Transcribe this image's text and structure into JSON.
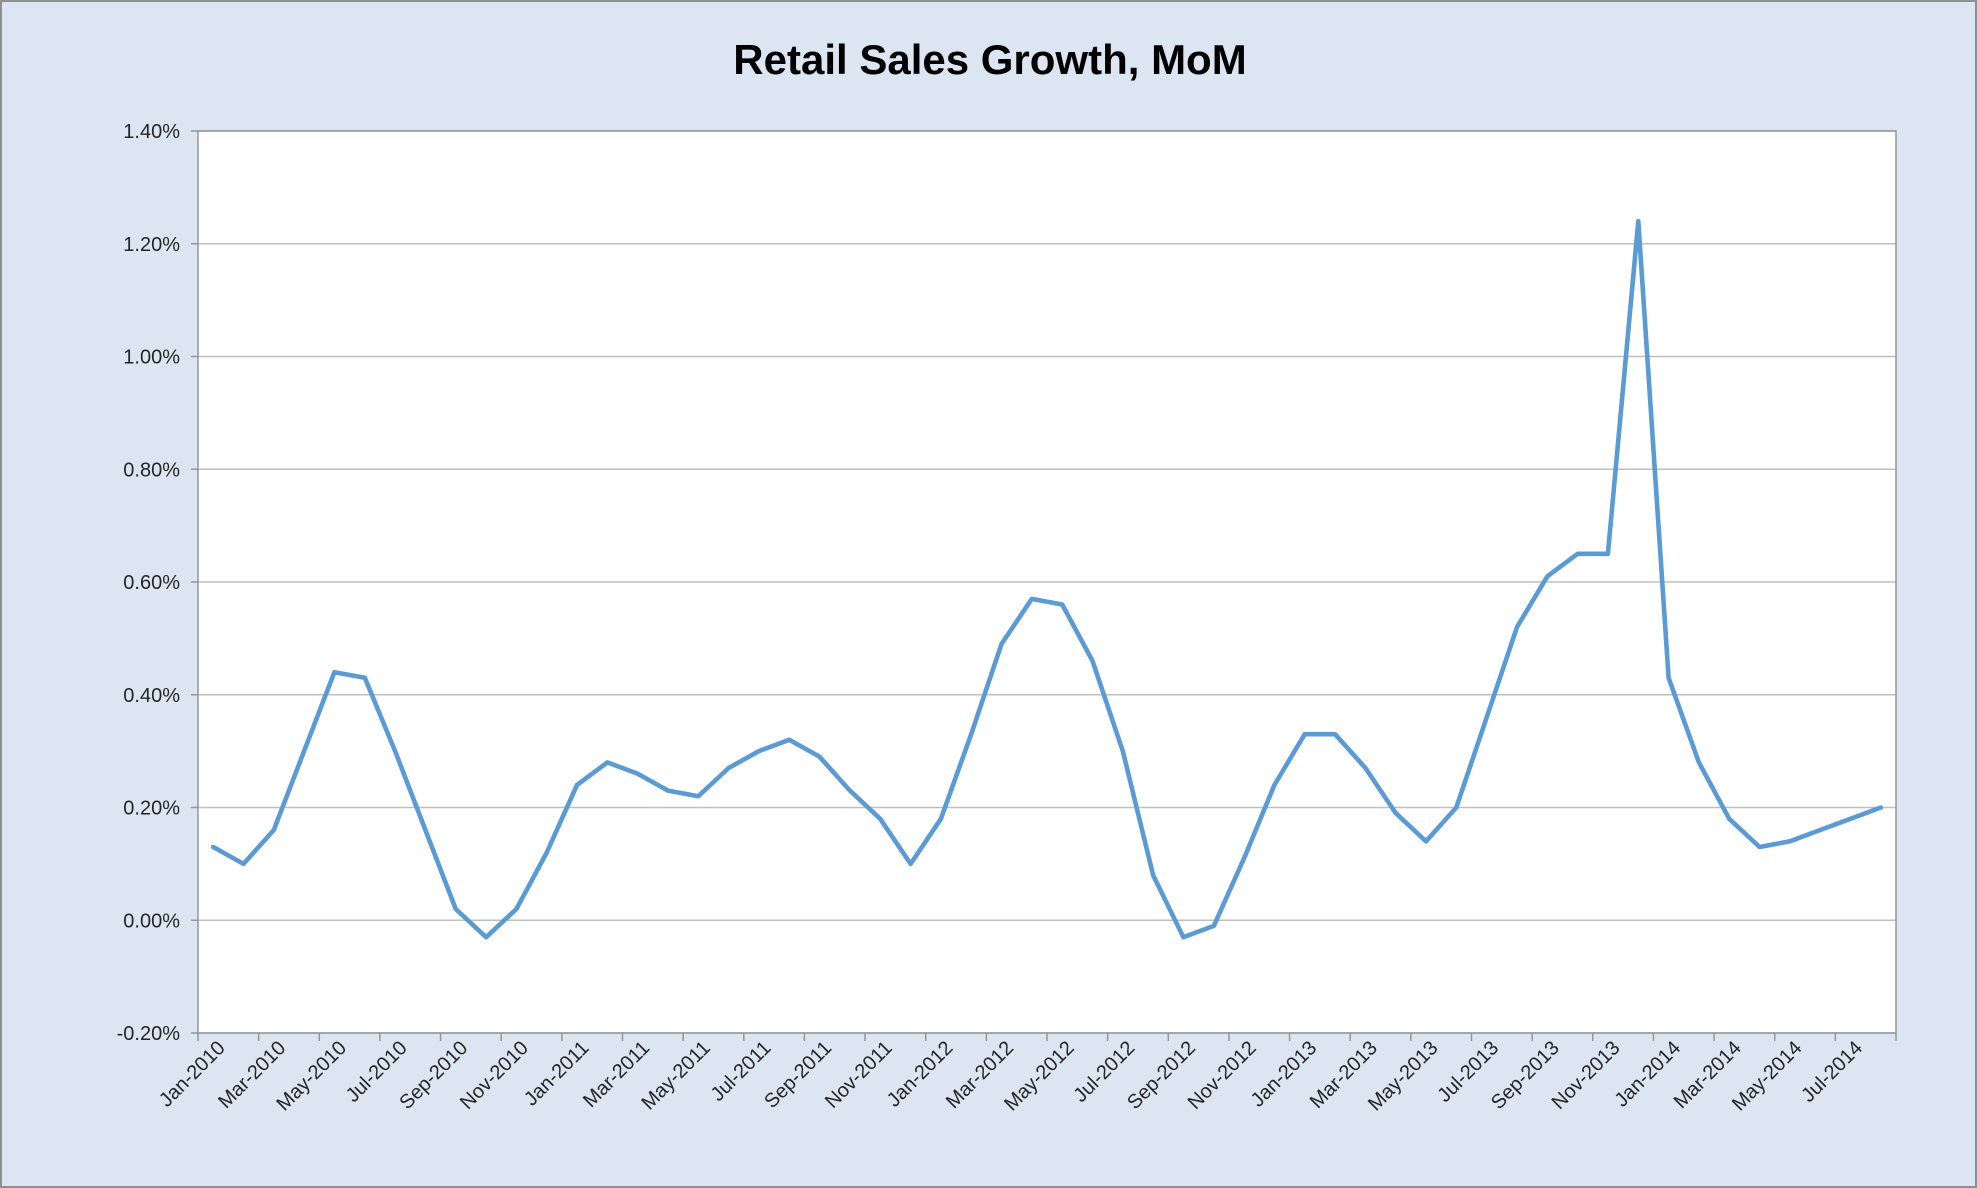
{
  "chart_data": {
    "type": "line",
    "title": "Retail Sales Growth, MoM",
    "categories": [
      "Jan-2010",
      "Feb-2010",
      "Mar-2010",
      "Apr-2010",
      "May-2010",
      "Jun-2010",
      "Jul-2010",
      "Aug-2010",
      "Sep-2010",
      "Oct-2010",
      "Nov-2010",
      "Dec-2010",
      "Jan-2011",
      "Feb-2011",
      "Mar-2011",
      "Apr-2011",
      "May-2011",
      "Jun-2011",
      "Jul-2011",
      "Aug-2011",
      "Sep-2011",
      "Oct-2011",
      "Nov-2011",
      "Dec-2011",
      "Jan-2012",
      "Feb-2012",
      "Mar-2012",
      "Apr-2012",
      "May-2012",
      "Jun-2012",
      "Jul-2012",
      "Aug-2012",
      "Sep-2012",
      "Oct-2012",
      "Nov-2012",
      "Dec-2012",
      "Jan-2013",
      "Feb-2013",
      "Mar-2013",
      "Apr-2013",
      "May-2013",
      "Jun-2013",
      "Jul-2013",
      "Aug-2013",
      "Sep-2013",
      "Oct-2013",
      "Nov-2013",
      "Dec-2013",
      "Jan-2014",
      "Feb-2014",
      "Mar-2014",
      "Apr-2014",
      "May-2014",
      "Jun-2014",
      "Jul-2014",
      "Aug-2014"
    ],
    "series": [
      {
        "name": "Retail Sales Growth, MoM",
        "unit": "%",
        "color": "#5B9BD5",
        "values": [
          0.13,
          0.1,
          0.16,
          0.3,
          0.44,
          0.43,
          0.3,
          0.16,
          0.02,
          -0.03,
          0.02,
          0.12,
          0.24,
          0.28,
          0.26,
          0.23,
          0.22,
          0.27,
          0.3,
          0.32,
          0.29,
          0.23,
          0.18,
          0.1,
          0.18,
          0.33,
          0.49,
          0.57,
          0.56,
          0.46,
          0.3,
          0.08,
          -0.03,
          -0.01,
          0.11,
          0.24,
          0.33,
          0.33,
          0.27,
          0.19,
          0.14,
          0.2,
          0.36,
          0.52,
          0.61,
          0.65,
          0.65,
          1.24,
          0.43,
          0.28,
          0.18,
          0.13,
          0.14,
          0.16,
          0.18,
          0.2
        ]
      }
    ],
    "ylim": [
      -0.2,
      1.4
    ],
    "ytick_step": 0.2,
    "ytick_labels": [
      "1.40%",
      "1.20%",
      "1.00%",
      "0.80%",
      "0.60%",
      "0.40%",
      "0.20%",
      "0.00%",
      "-0.20%"
    ],
    "xtick_labels": [
      "Jan-2010",
      "Mar-2010",
      "May-2010",
      "Jul-2010",
      "Sep-2010",
      "Nov-2010",
      "Jan-2011",
      "Mar-2011",
      "May-2011",
      "Jul-2011",
      "Sep-2011",
      "Nov-2011",
      "Jan-2012",
      "Mar-2012",
      "May-2012",
      "Jul-2012",
      "Sep-2012",
      "Nov-2012",
      "Jan-2013",
      "Mar-2013",
      "May-2013",
      "Jul-2013",
      "Sep-2013",
      "Nov-2013",
      "Jan-2014",
      "Mar-2014",
      "May-2014",
      "Jul-2014"
    ],
    "x_label_interval": 2,
    "x_label_rotation_deg": -45,
    "grid": "horizontal-major",
    "legend_position": "none"
  },
  "style": {
    "chart_bg": "#DCE6F2",
    "frame_border": "#8F8F8F",
    "plot_bg": "#FFFFFF",
    "plot_border": "#969696",
    "gridline": "#BFBFBF",
    "tick": "#969696",
    "axis_label_color": "#262626",
    "title_color": "#000000"
  }
}
